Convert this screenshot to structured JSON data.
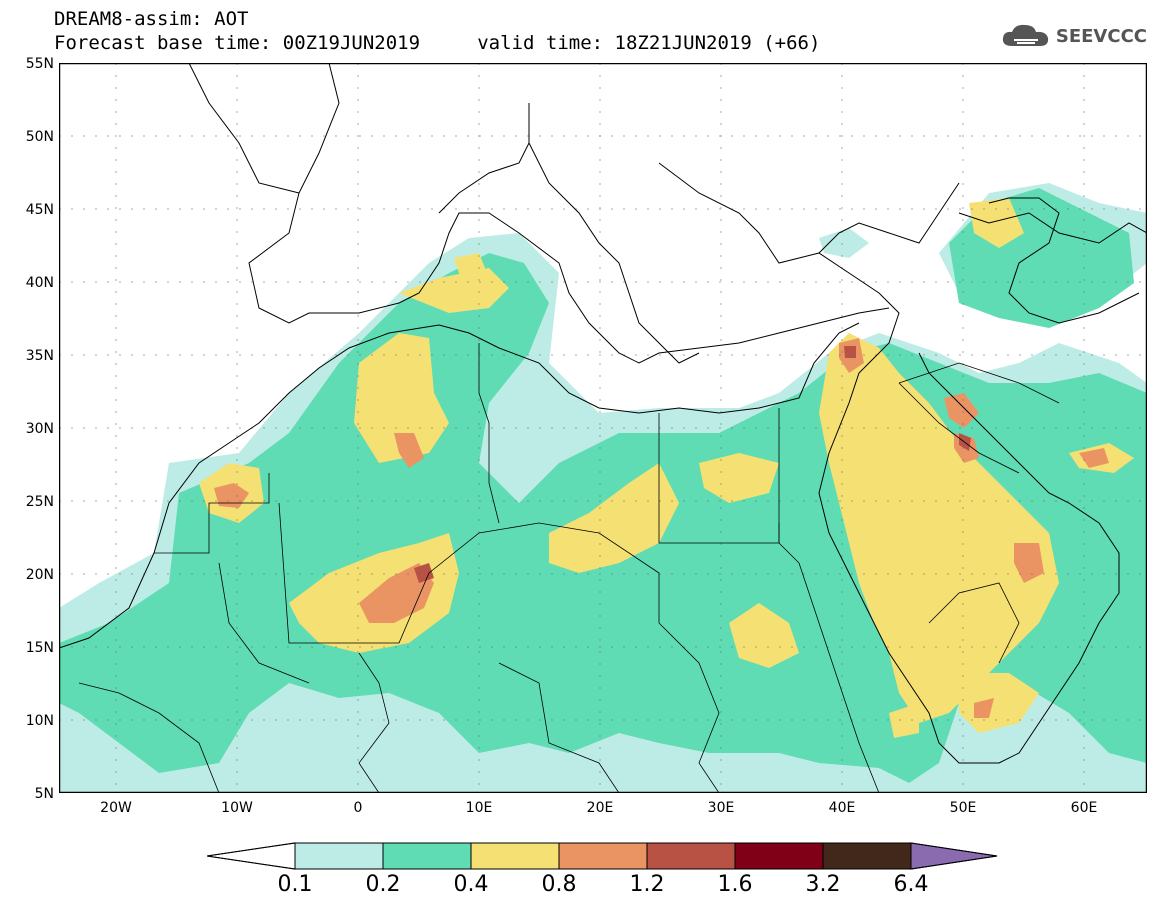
{
  "header": {
    "title_line1": "DREAM8-assim: AOT",
    "title_line2": "Forecast base time: 00Z19JUN2019     valid time: 18Z21JUN2019 (+66)",
    "logo_text": "SEEVCCC"
  },
  "axes": {
    "latitude_labels": [
      "55N",
      "50N",
      "45N",
      "40N",
      "35N",
      "30N",
      "25N",
      "20N",
      "15N",
      "10N",
      "5N"
    ],
    "longitude_labels": [
      "20W",
      "10W",
      "0",
      "10E",
      "20E",
      "30E",
      "40E",
      "50E",
      "60E"
    ]
  },
  "legend": {
    "levels": [
      "0.1",
      "0.2",
      "0.4",
      "0.8",
      "1.2",
      "1.6",
      "3.2",
      "6.4"
    ],
    "colors": [
      "#ffffff",
      "#bdece6",
      "#5fdcb4",
      "#f5e173",
      "#ea9464",
      "#b75244",
      "#800018",
      "#42281a",
      "#8a6bb0"
    ]
  },
  "colors": {
    "c1": "#bdece6",
    "c2": "#5fdcb4",
    "c3": "#f5e173",
    "c4": "#ea9464",
    "c5": "#b75244"
  }
}
